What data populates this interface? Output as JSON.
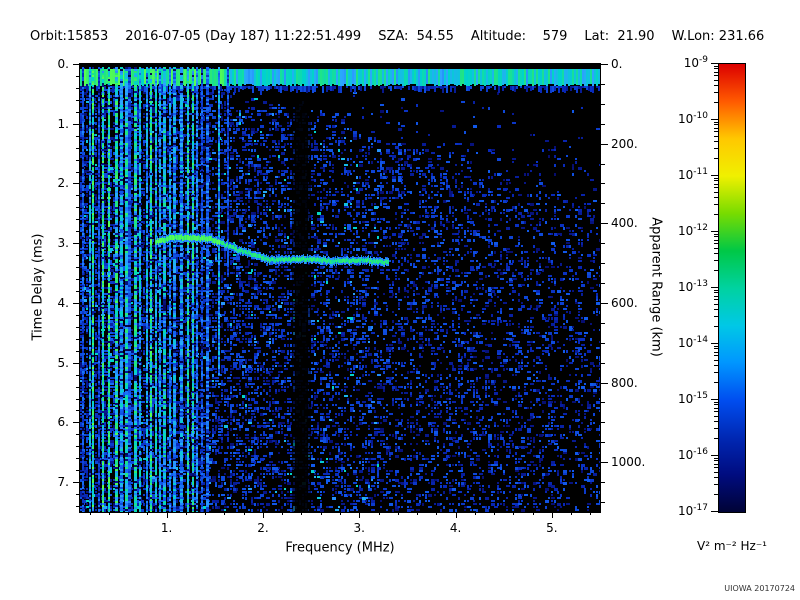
{
  "header": {
    "orbit": "Orbit:15853",
    "datetime": "2016-07-05 (Day 187) 11:22:51.499",
    "sza": "SZA:  54.55",
    "altitude": "Altitude:    579",
    "lat": "Lat:  21.90",
    "wlon": "W.Lon: 231.66"
  },
  "footer": {
    "credit": "UIOWA 20170724"
  },
  "chart_data": {
    "type": "heatmap",
    "title": "",
    "xlabel": "Frequency (MHz)",
    "ylabel_left": "Time Delay (ms)",
    "ylabel_right": "Apparent Range (km)",
    "xlim": [
      0.1,
      5.5
    ],
    "ylim_ms": [
      0,
      7.5
    ],
    "x_ticks": {
      "values": [
        1,
        2,
        3,
        4,
        5
      ],
      "labels": [
        "1.",
        "2.",
        "3.",
        "4.",
        "5."
      ],
      "minor_step": 0.2
    },
    "y_ticks_left": {
      "values": [
        0,
        1,
        2,
        3,
        4,
        5,
        6,
        7
      ],
      "labels": [
        "0.",
        "1.",
        "2.",
        "3.",
        "4.",
        "5.",
        "6.",
        "7."
      ],
      "minor_step": 0.2
    },
    "y_ticks_right": {
      "values": [
        0,
        200,
        400,
        600,
        800,
        1000
      ],
      "labels": [
        "0.",
        "200.",
        "400.",
        "600.",
        "800.",
        "1000."
      ],
      "minor_step": 50,
      "km_per_ms": 150
    },
    "colorbar": {
      "scale": "log10",
      "exponents": [
        -9,
        -10,
        -11,
        -12,
        -13,
        -14,
        -15,
        -16,
        -17
      ],
      "unit": "V² m⁻² Hz⁻¹",
      "gradient": [
        "#dc0000",
        "#ff5a00",
        "#ffc800",
        "#f0f000",
        "#78dc00",
        "#00c846",
        "#00d2a0",
        "#00c8e6",
        "#0096ff",
        "#004ef0",
        "#0028b4",
        "#000c80",
        "#000336"
      ]
    },
    "features": {
      "transmit_pulse_band": {
        "delay_ms": [
          0.08,
          0.34
        ],
        "freq_mhz": [
          0.1,
          5.5
        ]
      },
      "plasma_harmonic_stripes": {
        "freq_mhz": [
          0.1,
          1.47
        ],
        "full_height": true,
        "approx_count": 27
      },
      "partial_stripes": [
        [
          1.53,
          5.2,
          0.75
        ],
        [
          1.63,
          3.5,
          0.5
        ]
      ],
      "ionospheric_echo_trace": {
        "points_mhz_ms": [
          [
            0.88,
            2.97
          ],
          [
            1.05,
            2.9
          ],
          [
            1.45,
            2.92
          ],
          [
            1.75,
            3.12
          ],
          [
            2.05,
            3.28
          ],
          [
            2.45,
            3.27
          ],
          [
            2.75,
            3.3
          ],
          [
            3.05,
            3.28
          ],
          [
            3.3,
            3.33
          ]
        ]
      },
      "absorption_gap_freq_mhz": [
        2.33,
        2.47
      ],
      "background": "speckled blue noise, denser at low frequency, dark upper-right"
    }
  }
}
